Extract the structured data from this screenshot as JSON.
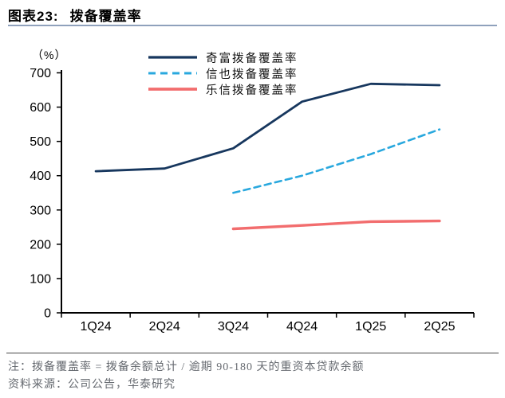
{
  "header": {
    "chart_label": "图表23:",
    "title": "拨备覆盖率"
  },
  "chart_data": {
    "type": "line",
    "title": "拨备覆盖率",
    "unit_label": "（%）",
    "categories": [
      "1Q24",
      "2Q24",
      "3Q24",
      "4Q24",
      "1Q25",
      "2Q25"
    ],
    "series": [
      {
        "name": "奇富拨备覆盖率",
        "color": "#17375e",
        "style": "solid",
        "stroke_width": 2.8,
        "values": [
          413,
          421,
          480,
          616,
          668,
          664
        ]
      },
      {
        "name": "信也拨备覆盖率",
        "color": "#29a8de",
        "style": "dashed",
        "stroke_width": 2.6,
        "values": [
          null,
          null,
          350,
          400,
          463,
          535
        ]
      },
      {
        "name": "乐信拨备覆盖率",
        "color": "#f26d6e",
        "style": "solid",
        "stroke_width": 3.4,
        "values": [
          null,
          null,
          245,
          255,
          266,
          268
        ]
      }
    ],
    "ylim": [
      0,
      700
    ],
    "yticks": [
      0,
      100,
      200,
      300,
      400,
      500,
      600,
      700
    ],
    "legend_position": "top",
    "grid": false,
    "axis_color": "#000000"
  },
  "footer": {
    "note": "注：拨备覆盖率 = 拨备余额总计 / 逾期 90-180 天的重资本贷款余额",
    "source": "资料来源：公司公告，华泰研究"
  },
  "colors": {
    "title_rule": "#8fa1bc",
    "footer_rule": "#474747",
    "note_text": "#666a70"
  }
}
